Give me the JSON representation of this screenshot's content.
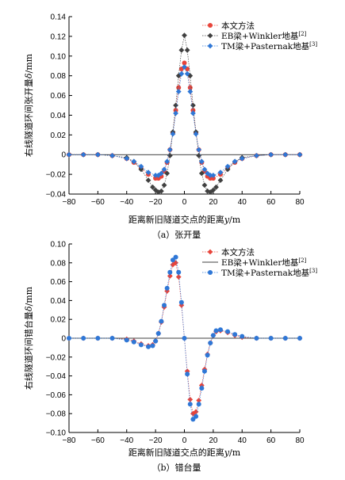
{
  "chart_data": [
    {
      "type": "scatter",
      "caption": "（a）张开量",
      "xlabel_prefix": "距离新旧隧道交点的距离",
      "xlabel_var": "y",
      "xlabel_unit": "/m",
      "ylabel_prefix": "右线隧道环间张开量",
      "ylabel_var": "δ",
      "ylabel_unit": "/mm",
      "xlim": [
        -80,
        80
      ],
      "ylim": [
        -0.04,
        0.14
      ],
      "xticks": [
        "-80",
        "-60",
        "-40",
        "-20",
        "0",
        "20",
        "40",
        "60",
        "80"
      ],
      "yticks": [
        "-0.04",
        "-0.02",
        "0",
        "0.02",
        "0.04",
        "0.06",
        "0.08",
        "0.10",
        "0.12",
        "0.14"
      ],
      "legend_position": "top-right",
      "series": [
        {
          "name": "本文方法",
          "sup": "",
          "color": "#e8443a",
          "marker": "circle",
          "x": [
            -80,
            -70,
            -60,
            -50,
            -40,
            -35,
            -30,
            -25,
            -20,
            -18,
            -16,
            -14,
            -12,
            -10,
            -8,
            -6,
            -4,
            -2,
            0,
            2,
            4,
            6,
            8,
            10,
            12,
            14,
            16,
            18,
            20,
            25,
            30,
            35,
            40,
            50,
            60,
            70,
            80
          ],
          "y": [
            0,
            0,
            0,
            -0.001,
            -0.004,
            -0.008,
            -0.014,
            -0.02,
            -0.024,
            -0.024,
            -0.022,
            -0.017,
            -0.008,
            0.005,
            0.022,
            0.045,
            0.068,
            0.087,
            0.093,
            0.087,
            0.068,
            0.045,
            0.022,
            0.005,
            -0.008,
            -0.017,
            -0.022,
            -0.024,
            -0.024,
            -0.02,
            -0.014,
            -0.008,
            -0.004,
            -0.001,
            0,
            0,
            0
          ]
        },
        {
          "name": "EB梁+Winkler地基",
          "sup": "[2]",
          "color": "#404040",
          "marker": "diamond",
          "x": [
            -80,
            -70,
            -60,
            -50,
            -40,
            -35,
            -30,
            -25,
            -22,
            -20,
            -18,
            -16,
            -14,
            -12,
            -10,
            -8,
            -6,
            -4,
            -2,
            0,
            2,
            4,
            6,
            8,
            10,
            12,
            14,
            16,
            18,
            20,
            22,
            25,
            30,
            35,
            40,
            50,
            60,
            70,
            80
          ],
          "y": [
            0,
            0,
            0,
            -0.001,
            -0.003,
            -0.007,
            -0.015,
            -0.026,
            -0.033,
            -0.036,
            -0.038,
            -0.037,
            -0.031,
            -0.019,
            -0.001,
            0.023,
            0.05,
            0.08,
            0.106,
            0.121,
            0.106,
            0.08,
            0.05,
            0.023,
            -0.001,
            -0.019,
            -0.031,
            -0.037,
            -0.038,
            -0.036,
            -0.033,
            -0.026,
            -0.015,
            -0.007,
            -0.003,
            -0.001,
            0,
            0,
            0
          ]
        },
        {
          "name": "TM梁+Pasternak地基",
          "sup": "[3]",
          "color": "#2f77d6",
          "marker": "diamond",
          "x": [
            -80,
            -70,
            -60,
            -50,
            -40,
            -35,
            -30,
            -25,
            -20,
            -18,
            -16,
            -14,
            -12,
            -10,
            -8,
            -6,
            -4,
            -2,
            0,
            2,
            4,
            6,
            8,
            10,
            12,
            14,
            16,
            18,
            20,
            25,
            30,
            35,
            40,
            50,
            60,
            70,
            80
          ],
          "y": [
            0,
            0,
            0,
            -0.001,
            -0.004,
            -0.007,
            -0.012,
            -0.018,
            -0.021,
            -0.021,
            -0.019,
            -0.015,
            -0.007,
            0.005,
            0.021,
            0.042,
            0.064,
            0.082,
            0.089,
            0.082,
            0.064,
            0.042,
            0.021,
            0.005,
            -0.007,
            -0.015,
            -0.019,
            -0.021,
            -0.021,
            -0.018,
            -0.012,
            -0.007,
            -0.004,
            -0.001,
            0,
            0,
            0
          ]
        }
      ]
    },
    {
      "type": "scatter",
      "caption": "（b）错台量",
      "xlabel_prefix": "距离新旧隧道交点的距离",
      "xlabel_var": "y",
      "xlabel_unit": "/m",
      "ylabel_prefix": "右线隧道环间错台量",
      "ylabel_var": "δ",
      "ylabel_unit": "/mm",
      "xlim": [
        -80,
        80
      ],
      "ylim": [
        -0.1,
        0.1
      ],
      "xticks": [
        "-80",
        "-60",
        "-40",
        "-20",
        "0",
        "20",
        "40",
        "60",
        "80"
      ],
      "yticks": [
        "-0.10",
        "-0.08",
        "-0.06",
        "-0.04",
        "-0.02",
        "0",
        "0.02",
        "0.04",
        "0.06",
        "0.08",
        "0.10"
      ],
      "legend_position": "top-right",
      "series": [
        {
          "name": "本文方法",
          "sup": "",
          "color": "#e8443a",
          "marker": "diamond",
          "x": [
            -80,
            -70,
            -60,
            -50,
            -40,
            -35,
            -30,
            -25,
            -22,
            -20,
            -18,
            -16,
            -14,
            -12,
            -10,
            -8,
            -6,
            -4,
            -2,
            0,
            2,
            4,
            6,
            8,
            10,
            12,
            14,
            16,
            18,
            20,
            22,
            25,
            30,
            35,
            40,
            50,
            60,
            70,
            80
          ],
          "y": [
            0,
            0,
            0,
            0,
            -0.001,
            -0.003,
            -0.006,
            -0.008,
            -0.007,
            -0.003,
            0.005,
            0.017,
            0.033,
            0.05,
            0.066,
            0.078,
            0.08,
            0.065,
            0.035,
            0,
            -0.035,
            -0.065,
            -0.08,
            -0.078,
            -0.066,
            -0.05,
            -0.033,
            -0.017,
            -0.005,
            0.003,
            0.007,
            0.008,
            0.006,
            0.003,
            0.001,
            0,
            0,
            0,
            0
          ]
        },
        {
          "name": "EB梁+Winkler地基",
          "sup": "[2]",
          "color": "#404040",
          "marker": "line",
          "x": [
            -80,
            80
          ],
          "y": [
            0,
            0
          ]
        },
        {
          "name": "TM梁+Pasternak地基",
          "sup": "[3]",
          "color": "#2f77d6",
          "marker": "circle",
          "x": [
            -80,
            -70,
            -60,
            -50,
            -40,
            -35,
            -30,
            -25,
            -22,
            -20,
            -18,
            -16,
            -14,
            -12,
            -10,
            -8,
            -6,
            -4,
            -2,
            0,
            2,
            4,
            6,
            8,
            10,
            12,
            14,
            16,
            18,
            20,
            22,
            25,
            30,
            35,
            40,
            50,
            60,
            70,
            80
          ],
          "y": [
            0,
            0,
            0,
            0,
            -0.002,
            -0.004,
            -0.007,
            -0.009,
            -0.008,
            -0.003,
            0.005,
            0.018,
            0.035,
            0.053,
            0.07,
            0.083,
            0.086,
            0.07,
            0.038,
            0,
            -0.038,
            -0.07,
            -0.086,
            -0.083,
            -0.07,
            -0.053,
            -0.035,
            -0.018,
            -0.005,
            0.003,
            0.008,
            0.009,
            0.007,
            0.004,
            0.002,
            0,
            0,
            0,
            0
          ]
        }
      ]
    }
  ]
}
